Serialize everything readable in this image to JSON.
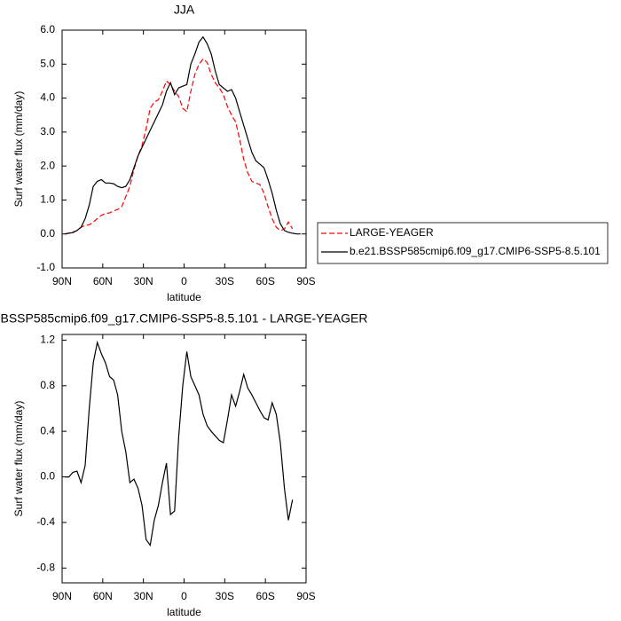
{
  "chart_data": [
    {
      "type": "line",
      "title": "JJA",
      "xlabel": "latitude",
      "ylabel": "Surf water flux (mm/day)",
      "x": [
        88,
        85,
        82,
        79,
        76,
        73,
        70,
        67,
        64,
        61,
        58,
        55,
        52,
        49,
        46,
        43,
        40,
        37,
        34,
        31,
        28,
        25,
        22,
        19,
        16,
        13,
        10,
        7,
        4,
        1,
        -2,
        -5,
        -8,
        -11,
        -14,
        -17,
        -20,
        -23,
        -26,
        -29,
        -32,
        -35,
        -38,
        -41,
        -44,
        -47,
        -50,
        -53,
        -56,
        -59,
        -62,
        -65,
        -68,
        -71,
        -74,
        -77,
        -80,
        -83,
        -86
      ],
      "series": [
        {
          "name": "LARGE-YEAGER",
          "color": "#ff0000",
          "dashed": true,
          "values": [
            0,
            0.02,
            0.06,
            0.1,
            0.2,
            0.25,
            0.27,
            0.35,
            0.45,
            0.55,
            0.6,
            0.62,
            0.68,
            0.72,
            0.8,
            1.1,
            1.4,
            1.9,
            2.3,
            2.6,
            3.1,
            3.7,
            3.88,
            3.95,
            4.2,
            4.5,
            4.4,
            4.2,
            4.05,
            3.7,
            3.6,
            4.2,
            4.7,
            5.0,
            5.15,
            5.05,
            4.7,
            4.45,
            4.3,
            4.1,
            3.75,
            3.5,
            3.3,
            2.8,
            2.2,
            1.8,
            1.55,
            1.5,
            1.45,
            1.2,
            0.8,
            0.45,
            0.2,
            0.1,
            0.15,
            0.35,
            0.15,
            null,
            null
          ]
        },
        {
          "name": "b.e21.BSSP585cmip6.f09_g17.CMIP6-SSP5-8.5.101",
          "color": "#000000",
          "dashed": false,
          "values": [
            0,
            0.02,
            0.04,
            0.1,
            0.2,
            0.45,
            0.85,
            1.4,
            1.55,
            1.6,
            1.5,
            1.5,
            1.48,
            1.4,
            1.36,
            1.4,
            1.6,
            1.95,
            2.3,
            2.55,
            2.8,
            3.05,
            3.3,
            3.55,
            3.8,
            4.2,
            4.45,
            4.1,
            4.3,
            4.35,
            4.4,
            5.0,
            5.3,
            5.65,
            5.8,
            5.6,
            5.3,
            4.8,
            4.4,
            4.3,
            4.2,
            4.25,
            4.0,
            3.6,
            3.2,
            2.8,
            2.4,
            2.15,
            2.05,
            1.95,
            1.6,
            1.2,
            0.7,
            0.3,
            0.1,
            0.05,
            0.02,
            0,
            0
          ]
        }
      ],
      "xlim": [
        90,
        -90
      ],
      "xticks": [
        {
          "value": 90,
          "label": "90N"
        },
        {
          "value": 60,
          "label": "60N"
        },
        {
          "value": 30,
          "label": "30N"
        },
        0,
        {
          "value": -30,
          "label": "30S"
        },
        {
          "value": -60,
          "label": "60S"
        },
        {
          "value": -90,
          "label": "90S"
        }
      ],
      "ylim": [
        -1,
        6
      ],
      "yticks": [
        {
          "value": -1,
          "label": "-1.0"
        },
        {
          "value": 0,
          "label": "0.0"
        },
        {
          "value": 1,
          "label": "1.0"
        },
        {
          "value": 2,
          "label": "2.0"
        },
        {
          "value": 3,
          "label": "3.0"
        },
        {
          "value": 4,
          "label": "4.0"
        },
        {
          "value": 5,
          "label": "5.0"
        },
        {
          "value": 6,
          "label": "6.0"
        }
      ],
      "legend": "right"
    },
    {
      "type": "line",
      "title": "BSSP585cmip6.f09_g17.CMIP6-SSP5-8.5.101 - LARGE-YEAGER",
      "xlabel": "latitude",
      "ylabel": "Surf water flux (mm/day)",
      "x": [
        88,
        85,
        82,
        79,
        76,
        73,
        70,
        67,
        64,
        61,
        58,
        55,
        52,
        49,
        46,
        43,
        40,
        37,
        34,
        31,
        28,
        25,
        22,
        19,
        16,
        13,
        10,
        7,
        4,
        1,
        -2,
        -5,
        -8,
        -11,
        -14,
        -17,
        -20,
        -23,
        -26,
        -29,
        -32,
        -35,
        -38,
        -41,
        -44,
        -47,
        -50,
        -53,
        -56,
        -59,
        -62,
        -65,
        -68,
        -71,
        -74,
        -77,
        -80,
        -83,
        -86
      ],
      "color": "#000000",
      "values": [
        0,
        0,
        0.04,
        0.05,
        -0.05,
        0.1,
        0.6,
        1.0,
        1.18,
        1.08,
        1.0,
        0.88,
        0.85,
        0.72,
        0.4,
        0.22,
        -0.05,
        -0.02,
        -0.1,
        -0.25,
        -0.55,
        -0.6,
        -0.38,
        -0.25,
        -0.05,
        0.12,
        -0.33,
        -0.3,
        0.35,
        0.8,
        1.1,
        0.88,
        0.8,
        0.72,
        0.55,
        0.45,
        0.4,
        0.36,
        0.32,
        0.3,
        0.5,
        0.72,
        0.62,
        0.75,
        0.9,
        0.78,
        0.72,
        0.65,
        0.58,
        0.52,
        0.5,
        0.65,
        0.55,
        0.3,
        -0.1,
        -0.38,
        -0.2,
        null,
        null
      ],
      "xlim": [
        90,
        -90
      ],
      "xticks": [
        {
          "value": 90,
          "label": "90N"
        },
        {
          "value": 60,
          "label": "60N"
        },
        {
          "value": 30,
          "label": "30N"
        },
        0,
        {
          "value": -30,
          "label": "30S"
        },
        {
          "value": -60,
          "label": "60S"
        },
        {
          "value": -90,
          "label": "90S"
        }
      ],
      "ylim": [
        -0.93,
        1.25
      ],
      "yticks": [
        -0.8,
        -0.4,
        {
          "value": 0,
          "label": "0.0"
        },
        0.4,
        0.8,
        1.2
      ]
    }
  ]
}
